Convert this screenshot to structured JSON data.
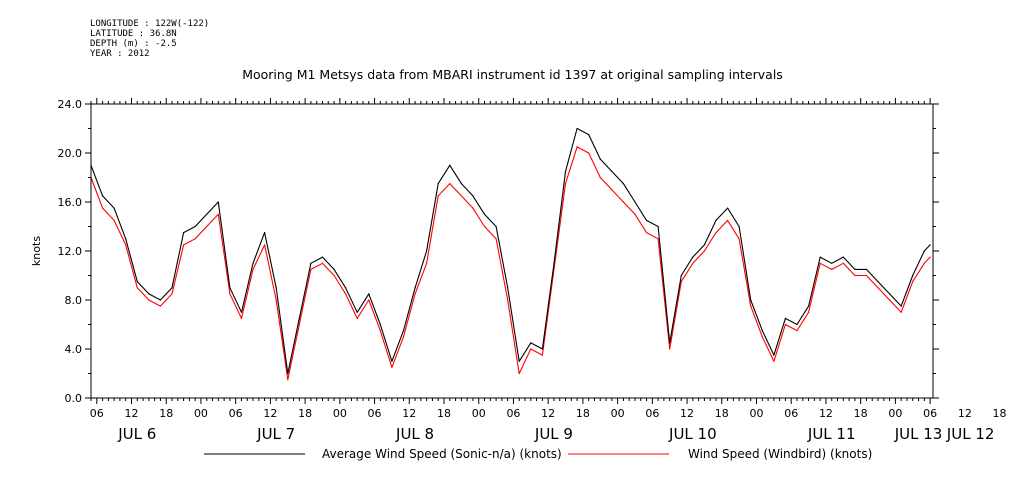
{
  "header": {
    "longitude": "LONGITUDE : 122W(-122)",
    "latitude": "LATITUDE : 36.8N",
    "depth": "DEPTH (m) : -2.5",
    "year": "YEAR : 2012"
  },
  "colors": {
    "sonic": "#000000",
    "windbird": "#ff0000"
  },
  "chart_data": {
    "type": "line",
    "title": "Mooring M1 Metsys data from MBARI instrument id 1397 at original sampling intervals",
    "ylabel": "knots",
    "ylim": [
      0,
      24
    ],
    "yticks": [
      "0.0",
      "4.0",
      "8.0",
      "12.0",
      "16.0",
      "20.0",
      "24.0"
    ],
    "xlim_hours_from_jul6_00": [
      5,
      150.5
    ],
    "hour_ticks": [
      "06",
      "12",
      "18",
      "00",
      "06",
      "12",
      "18",
      "00",
      "06",
      "12",
      "18",
      "00",
      "06",
      "12",
      "18",
      "00",
      "06",
      "12",
      "18",
      "00",
      "06",
      "12",
      "18",
      "00",
      "06",
      "12",
      "18",
      "00",
      "06"
    ],
    "day_labels": [
      "JUL 6",
      "JUL 7",
      "JUL 8",
      "JUL 9",
      "JUL 10",
      "JUL 11",
      "JUL 12",
      "JUL 13"
    ],
    "series": [
      {
        "name": "Average Wind Speed (Sonic-n/a) (knots)",
        "x_hours_from_jul6_00": [
          5,
          7,
          9,
          11,
          13,
          15,
          17,
          19,
          21,
          23,
          25,
          27,
          29,
          31,
          33,
          35,
          37,
          39,
          41,
          43,
          45,
          47,
          49,
          51,
          53,
          55,
          57,
          59,
          61,
          63,
          65,
          67,
          69,
          71,
          73,
          75,
          77,
          79,
          81,
          83,
          85,
          87,
          89,
          91,
          93,
          95,
          97,
          99,
          101,
          103,
          105,
          107,
          109,
          111,
          113,
          115,
          117,
          119,
          121,
          123,
          125,
          127,
          129,
          131,
          133,
          135,
          137,
          139,
          141,
          143,
          145,
          147,
          149,
          150
        ],
        "y": [
          19.0,
          16.5,
          15.5,
          13.0,
          9.5,
          8.5,
          8.0,
          9.0,
          13.5,
          14.0,
          15.0,
          16.0,
          9.0,
          7.0,
          11.0,
          13.5,
          9.0,
          2.0,
          6.5,
          11.0,
          11.5,
          10.5,
          9.0,
          7.0,
          8.5,
          6.0,
          3.0,
          5.5,
          9.0,
          12.0,
          17.5,
          19.0,
          17.5,
          16.5,
          15.0,
          14.0,
          9.0,
          3.0,
          4.5,
          4.0,
          11.0,
          18.5,
          22.0,
          21.5,
          19.5,
          18.5,
          17.5,
          16.0,
          14.5,
          14.0,
          4.5,
          10.0,
          11.5,
          12.5,
          14.5,
          15.5,
          14.0,
          8.0,
          5.5,
          3.5,
          6.5,
          6.0,
          7.5,
          11.5,
          11.0,
          11.5,
          10.5,
          10.5,
          9.5,
          8.5,
          7.5,
          10.0,
          12.0,
          12.5
        ],
        "color": "#000000"
      },
      {
        "name": "Wind Speed (Windbird) (knots)",
        "x_hours_from_jul6_00": [
          5,
          7,
          9,
          11,
          13,
          15,
          17,
          19,
          21,
          23,
          25,
          27,
          29,
          31,
          33,
          35,
          37,
          39,
          41,
          43,
          45,
          47,
          49,
          51,
          53,
          55,
          57,
          59,
          61,
          63,
          65,
          67,
          69,
          71,
          73,
          75,
          77,
          79,
          81,
          83,
          85,
          87,
          89,
          91,
          93,
          95,
          97,
          99,
          101,
          103,
          105,
          107,
          109,
          111,
          113,
          115,
          117,
          119,
          121,
          123,
          125,
          127,
          129,
          131,
          133,
          135,
          137,
          139,
          141,
          143,
          145,
          147,
          149,
          150
        ],
        "y": [
          18.0,
          15.5,
          14.5,
          12.5,
          9.0,
          8.0,
          7.5,
          8.5,
          12.5,
          13.0,
          14.0,
          15.0,
          8.5,
          6.5,
          10.5,
          12.5,
          8.0,
          1.5,
          6.0,
          10.5,
          11.0,
          10.0,
          8.5,
          6.5,
          8.0,
          5.5,
          2.5,
          5.0,
          8.5,
          11.0,
          16.5,
          17.5,
          16.5,
          15.5,
          14.0,
          13.0,
          8.0,
          2.0,
          4.0,
          3.5,
          10.5,
          17.5,
          20.5,
          20.0,
          18.0,
          17.0,
          16.0,
          15.0,
          13.5,
          13.0,
          4.0,
          9.5,
          11.0,
          12.0,
          13.5,
          14.5,
          13.0,
          7.5,
          5.0,
          3.0,
          6.0,
          5.5,
          7.0,
          11.0,
          10.5,
          11.0,
          10.0,
          10.0,
          9.0,
          8.0,
          7.0,
          9.5,
          11.0,
          11.5
        ],
        "color": "#ff0000"
      }
    ],
    "legend": [
      "Average Wind Speed (Sonic-n/a) (knots)",
      "Wind Speed (Windbird) (knots)"
    ]
  }
}
